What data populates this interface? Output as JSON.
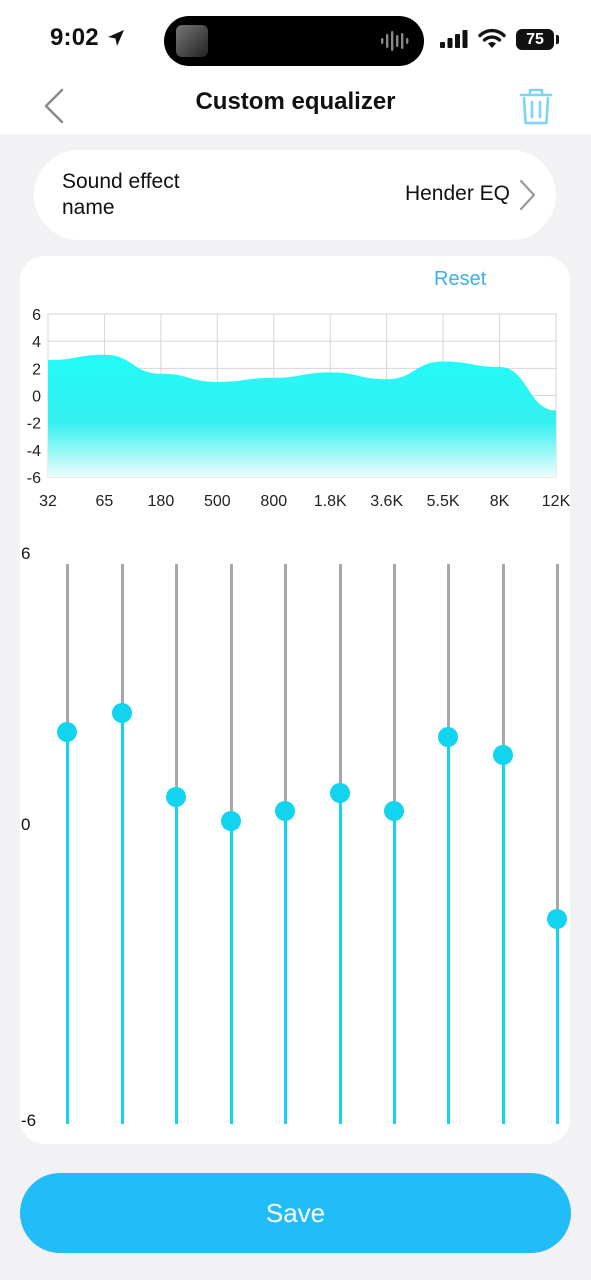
{
  "status": {
    "time": "9:02",
    "battery": "75"
  },
  "nav": {
    "title": "Custom equalizer"
  },
  "sound_effect": {
    "label": "Sound effect name",
    "value": "Hender EQ"
  },
  "eq": {
    "reset_label": "Reset",
    "scale_labels": {
      "max": "6",
      "mid": "0",
      "min": "-6"
    },
    "accent_color": "#12d4ee",
    "track_color": "#a8a8a8"
  },
  "chart_data": {
    "type": "area",
    "categories": [
      "32",
      "65",
      "180",
      "500",
      "800",
      "1.8K",
      "3.6K",
      "5.5K",
      "8K",
      "12K"
    ],
    "values": [
      2.6,
      3.0,
      1.6,
      1.0,
      1.3,
      1.7,
      1.2,
      2.5,
      2.1,
      -1.1
    ],
    "y_ticks": [
      "6",
      "4",
      "2",
      "0",
      "-2",
      "-4",
      "-6"
    ],
    "ylim": [
      -6,
      6
    ],
    "grid": true
  },
  "bands": [
    {
      "freq": "32",
      "gain": 2.4
    },
    {
      "freq": "65",
      "gain": 2.8
    },
    {
      "freq": "180",
      "gain": 1.0
    },
    {
      "freq": "500",
      "gain": 0.5
    },
    {
      "freq": "800",
      "gain": 0.7
    },
    {
      "freq": "1.8K",
      "gain": 1.1
    },
    {
      "freq": "3.6K",
      "gain": 0.7
    },
    {
      "freq": "5.5K",
      "gain": 2.3
    },
    {
      "freq": "8K",
      "gain": 1.9
    },
    {
      "freq": "12K",
      "gain": -1.6
    }
  ],
  "save_label": "Save"
}
